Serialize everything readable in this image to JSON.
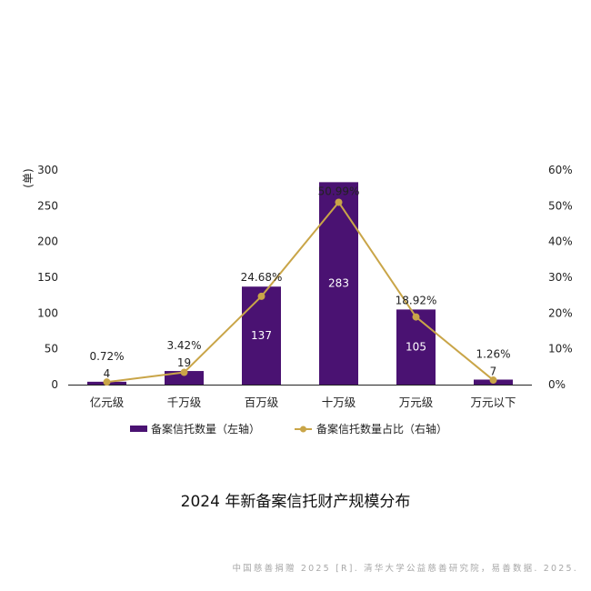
{
  "chart_data": {
    "type": "bar",
    "categories": [
      "亿元级",
      "千万级",
      "百万级",
      "十万级",
      "万元级",
      "万元以下"
    ],
    "series": [
      {
        "name": "备案信托数量（左轴）",
        "values": [
          4,
          19,
          137,
          283,
          105,
          7
        ],
        "type": "bar",
        "axis": "left",
        "color": "#4a1272"
      },
      {
        "name": "备案信托数量占比（右轴）",
        "values": [
          0.72,
          3.42,
          24.68,
          50.99,
          18.92,
          1.26
        ],
        "labels": [
          "0.72%",
          "3.42%",
          "24.68%",
          "50.99%",
          "18.92%",
          "1.26%"
        ],
        "type": "line",
        "axis": "right",
        "color": "#c9a548"
      }
    ],
    "ylabel": "(单)",
    "ylim": [
      0,
      300
    ],
    "y_ticks": [
      "0",
      "50",
      "100",
      "150",
      "200",
      "250",
      "300"
    ],
    "y2lim": [
      0,
      60
    ],
    "y2_ticks": [
      "0%",
      "10%",
      "20%",
      "30%",
      "40%",
      "50%",
      "60%"
    ],
    "grid": false,
    "legend_position": "bottom"
  },
  "caption": "2024 年新备案信托财产规模分布",
  "source": "中国慈善捐赠 2025 [R]. 清华大学公益慈善研究院，易善数据. 2025."
}
